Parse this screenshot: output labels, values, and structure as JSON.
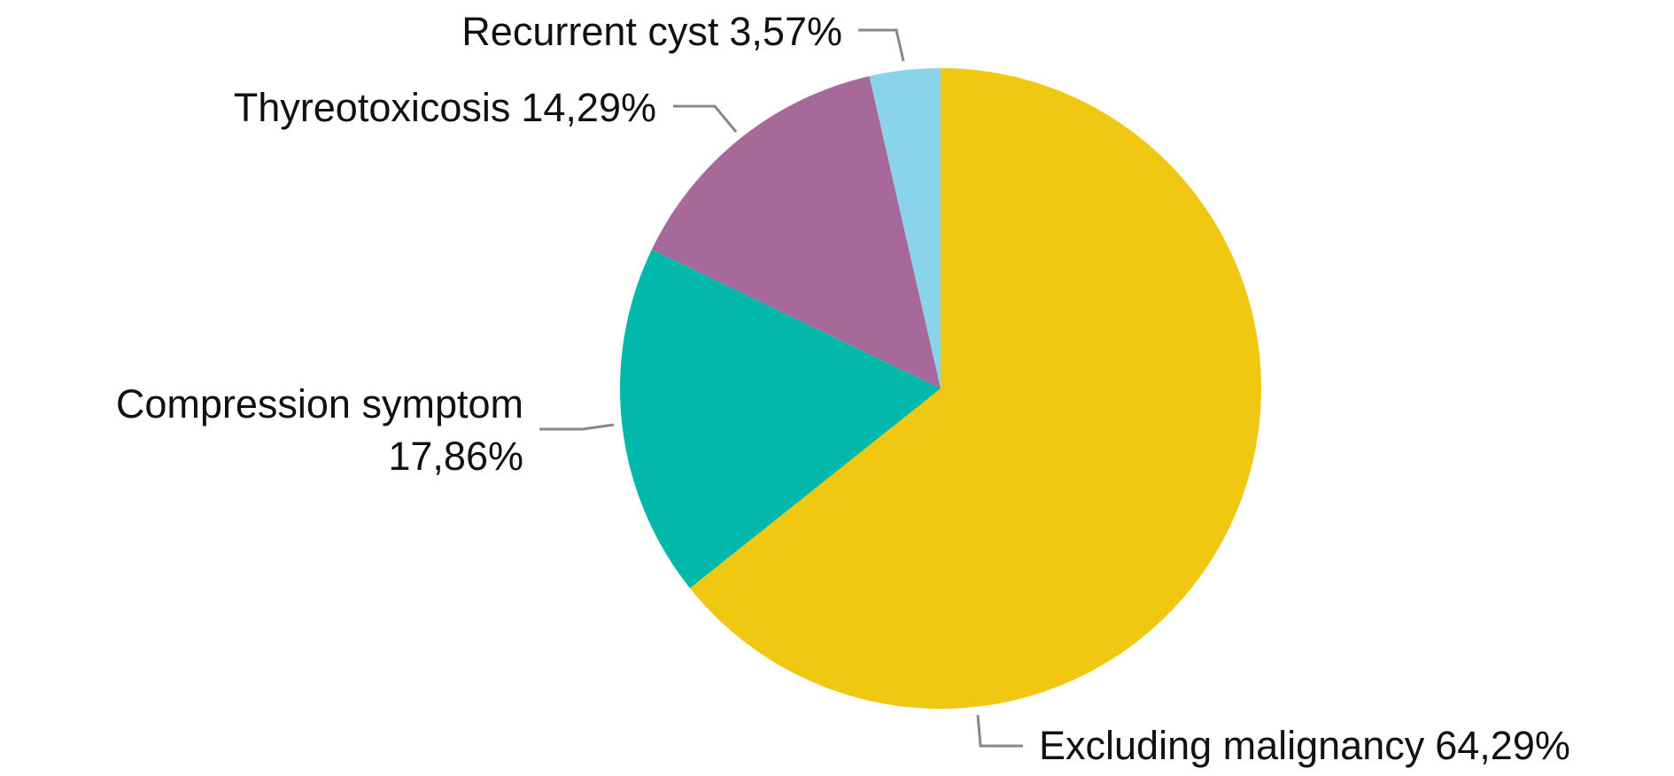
{
  "chart_data": {
    "type": "pie",
    "categories": [
      "Excluding malignancy",
      "Compression symptom",
      "Thyreotoxicosis",
      "Recurrent cyst"
    ],
    "values": [
      64.29,
      17.86,
      14.29,
      3.57
    ],
    "value_labels": [
      "64,29%",
      "17,86%",
      "14,29%",
      "3,57%"
    ],
    "colors": [
      "#f1c811",
      "#02b8ab",
      "#a66999",
      "#8ad4eb"
    ]
  }
}
